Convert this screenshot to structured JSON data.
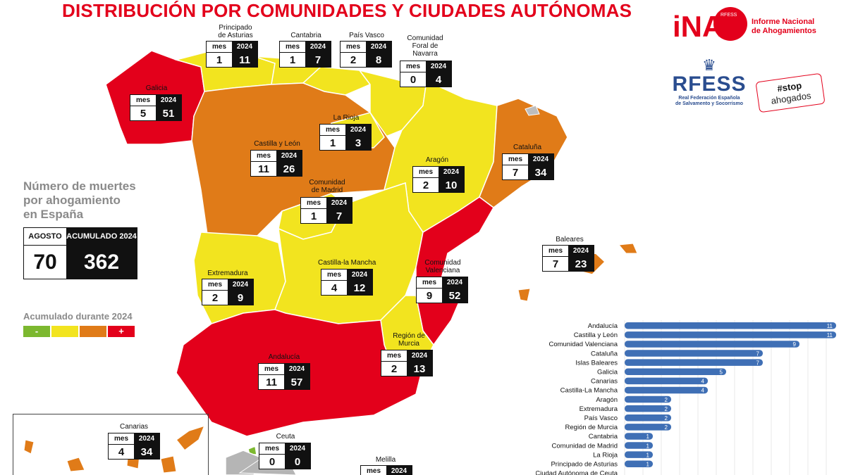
{
  "title": "DISTRIBUCIÓN POR COMUNIDADES Y CIUDADES AUTÓNOMAS",
  "logos": {
    "ina_mark": "iNA",
    "ina_badge": "RFESS",
    "ina_line1": "Informe Nacional",
    "ina_line2": "de Ahogamientos",
    "rfess_name": "RFESS",
    "rfess_line1": "Real Federación Española",
    "rfess_line2": "de Salvamento y Socorrismo",
    "stop_line1": "#stop",
    "stop_line2": "ahogados"
  },
  "summary": {
    "heading_line1": "Número de muertes",
    "heading_line2": "por ahogamiento",
    "heading_line3": "en España",
    "month_header": "AGOSTO",
    "cumulative_header": "ACUMULADO 2024",
    "month_value": "70",
    "cumulative_value": "362"
  },
  "legend": {
    "title": "Acumulado durante 2024",
    "low_label": "-",
    "high_label": "+",
    "colors": [
      "#7cb82f",
      "#f2e41f",
      "#e07b18",
      "#e3001b"
    ]
  },
  "stat_headers": {
    "month": "mes",
    "year": "2024"
  },
  "regions": [
    {
      "name": "Galicia",
      "mes": "5",
      "year": "51",
      "fill": "#e3001b"
    },
    {
      "name": "Principado de Asturias",
      "mes": "1",
      "year": "11",
      "fill": "#f2e41f"
    },
    {
      "name": "Cantabria",
      "mes": "1",
      "year": "7",
      "fill": "#f2e41f"
    },
    {
      "name": "País Vasco",
      "mes": "2",
      "year": "8",
      "fill": "#f2e41f"
    },
    {
      "name": "Comunidad Foral de Navarra",
      "mes": "0",
      "year": "4",
      "fill": "#f2e41f"
    },
    {
      "name": "La Rioja",
      "mes": "1",
      "year": "3",
      "fill": "#f2e41f"
    },
    {
      "name": "Castilla y León",
      "mes": "11",
      "year": "26",
      "fill": "#e07b18"
    },
    {
      "name": "Aragón",
      "mes": "2",
      "year": "10",
      "fill": "#f2e41f"
    },
    {
      "name": "Cataluña",
      "mes": "7",
      "year": "34",
      "fill": "#e07b18"
    },
    {
      "name": "Comunidad de Madrid",
      "mes": "1",
      "year": "7",
      "fill": "#f2e41f"
    },
    {
      "name": "Extremadura",
      "mes": "2",
      "year": "9",
      "fill": "#f2e41f"
    },
    {
      "name": "Castilla-la Mancha",
      "mes": "4",
      "year": "12",
      "fill": "#f2e41f"
    },
    {
      "name": "Comunidad Valenciana",
      "mes": "9",
      "year": "52",
      "fill": "#e3001b"
    },
    {
      "name": "Baleares",
      "mes": "7",
      "year": "23",
      "fill": "#e07b18"
    },
    {
      "name": "Región de Murcia",
      "mes": "2",
      "year": "13",
      "fill": "#f2e41f"
    },
    {
      "name": "Andalucía",
      "mes": "11",
      "year": "57",
      "fill": "#e3001b"
    },
    {
      "name": "Canarias",
      "mes": "4",
      "year": "34",
      "fill": "#e07b18"
    },
    {
      "name": "Ceuta",
      "mes": "0",
      "year": "0",
      "fill": "#7cb82f"
    },
    {
      "name": "Melilla",
      "mes": "",
      "year": "2024",
      "fill": "#b5b5b5"
    }
  ],
  "chart_data": [
    {
      "type": "bar",
      "orientation": "horizontal",
      "categories": [
        "Andalucía",
        "Castilla y León",
        "Comunidad Valenciana",
        "Cataluña",
        "Islas Baleares",
        "Galicia",
        "Canarias",
        "Castilla-La Mancha",
        "Aragón",
        "Extremadura",
        "País Vasco",
        "Región de Murcia",
        "Cantabria",
        "Comunidad de Madrid",
        "La Rioja",
        "Principado de Asturias",
        "Ciudad Autónoma de Ceuta"
      ],
      "values": [
        11,
        11,
        9,
        7,
        7,
        5,
        4,
        4,
        2,
        2,
        2,
        2,
        1,
        1,
        1,
        1,
        0
      ],
      "bar_color": "#3f6fb5",
      "xlim": [
        0,
        11
      ],
      "grid": true
    }
  ]
}
